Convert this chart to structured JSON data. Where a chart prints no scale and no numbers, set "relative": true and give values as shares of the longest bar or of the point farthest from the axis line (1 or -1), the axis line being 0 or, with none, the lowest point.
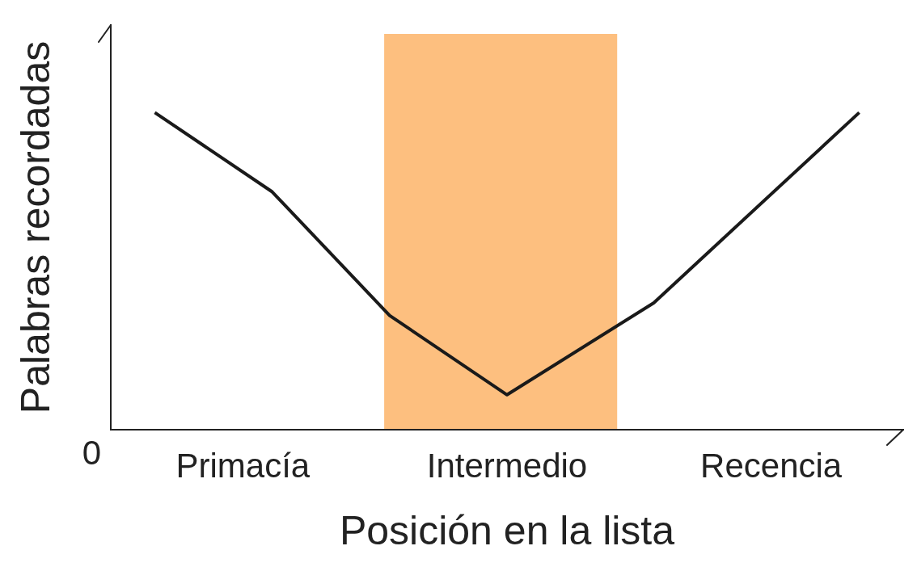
{
  "chart_data": {
    "type": "line",
    "xlabel": "Posición en la lista",
    "ylabel": "Palabras recordadas",
    "categories": [
      null,
      null,
      null,
      null,
      "Primacía",
      null,
      null,
      null,
      null,
      null,
      null,
      null,
      null,
      "Intermedio",
      null,
      null,
      null,
      null,
      null,
      null,
      null,
      null,
      "Recencia",
      null,
      null,
      null,
      null
    ],
    "values": [
      null,
      1,
      null,
      null,
      null,
      0.75,
      null,
      null,
      null,
      0.36,
      null,
      null,
      null,
      0.11,
      null,
      null,
      null,
      null,
      0.4,
      null,
      null,
      null,
      null,
      null,
      null,
      1,
      null
    ],
    "color": "#1a1a1a",
    "relative": true,
    "annotations": [
      "0"
    ]
  }
}
